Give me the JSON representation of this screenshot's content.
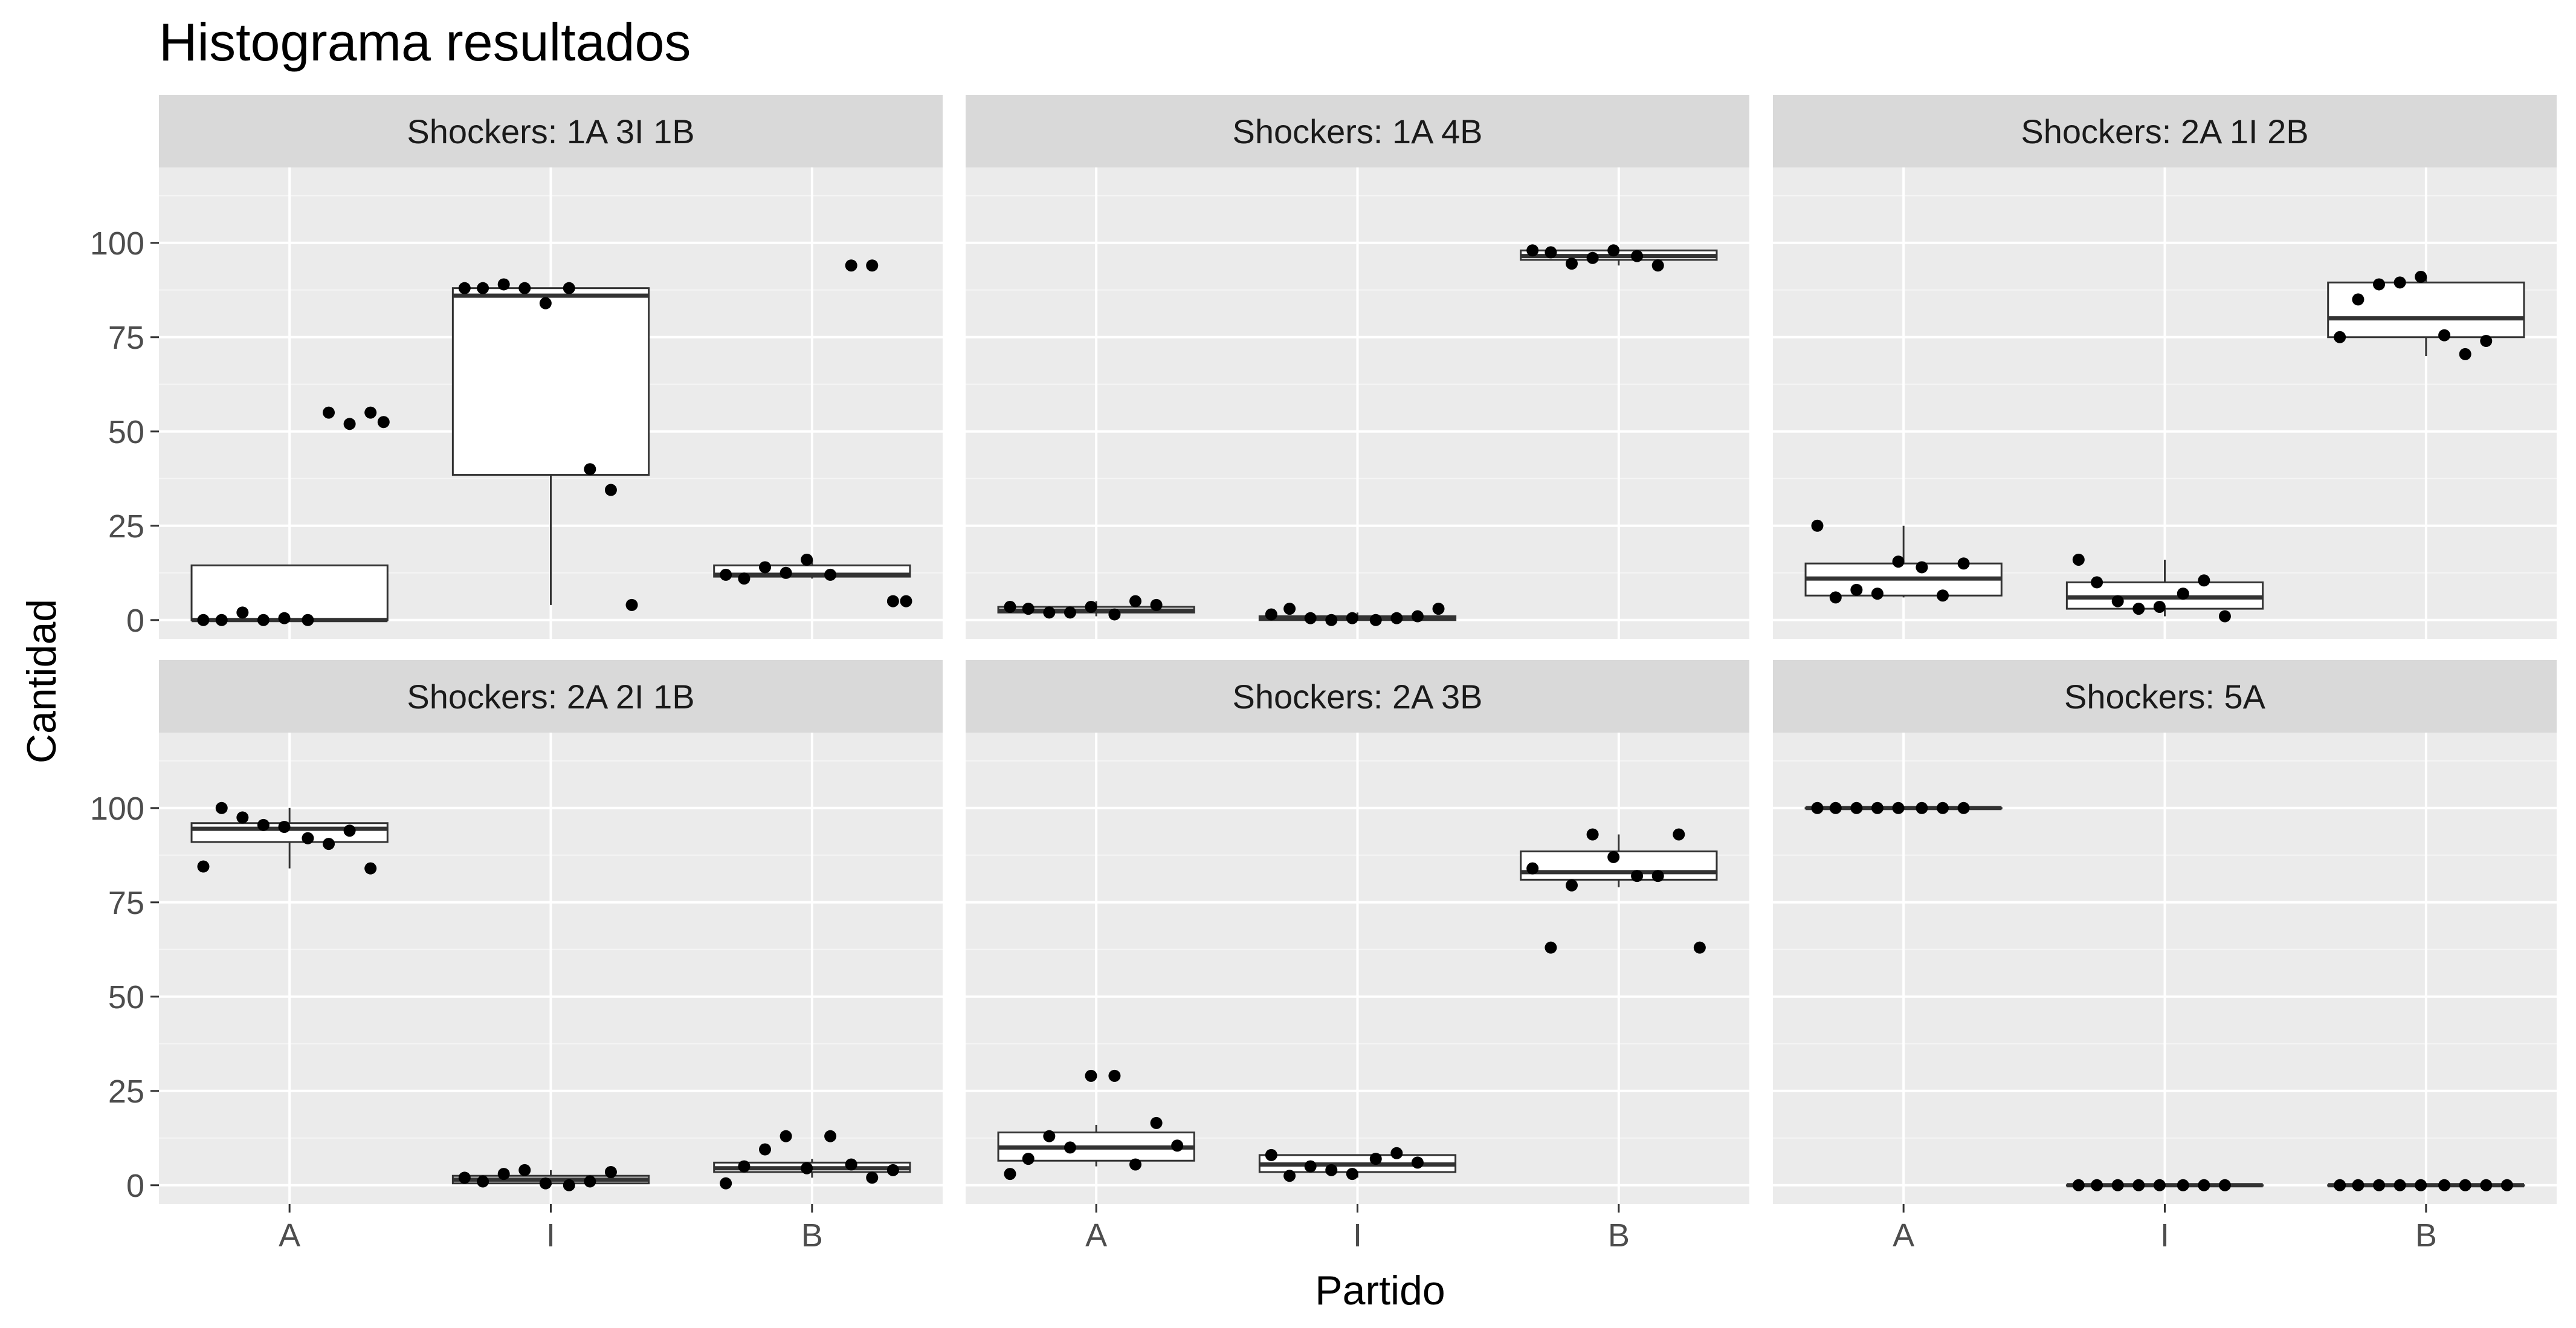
{
  "chart_data": {
    "type": "box",
    "title": "Histograma resultados",
    "xlabel": "Partido",
    "ylabel": "Cantidad",
    "x_categories": [
      "A",
      "I",
      "B"
    ],
    "y_ticks": [
      0,
      25,
      50,
      75,
      100
    ],
    "ylim": [
      -5,
      120
    ],
    "grid": true,
    "facets": [
      {
        "label": "Shockers: 1A 3I 1B",
        "groups": [
          {
            "category": "A",
            "box": {
              "q1": 0,
              "median": 0,
              "q3": 14.5,
              "lower": 0,
              "upper": 14.5
            },
            "points": [
              0,
              0,
              2,
              0,
              0.5,
              0,
              55,
              52,
              55,
              52.5
            ]
          },
          {
            "category": "I",
            "box": {
              "q1": 38.5,
              "median": 86,
              "q3": 88,
              "lower": 4,
              "upper": 88
            },
            "points": [
              88,
              88,
              89,
              88,
              84,
              88,
              40,
              34.5,
              4
            ]
          },
          {
            "category": "B",
            "box": {
              "q1": 11.5,
              "median": 12,
              "q3": 14.5,
              "lower": 11,
              "upper": 16
            },
            "points": [
              12,
              11,
              14,
              12.5,
              16,
              12,
              94,
              94,
              5,
              5
            ]
          }
        ]
      },
      {
        "label": "Shockers: 1A 4B",
        "groups": [
          {
            "category": "A",
            "box": {
              "q1": 2,
              "median": 2.5,
              "q3": 3.5,
              "lower": 1,
              "upper": 5
            },
            "points": [
              3.5,
              3,
              2,
              2,
              3.5,
              1.5,
              5,
              4
            ]
          },
          {
            "category": "I",
            "box": {
              "q1": 0,
              "median": 0.5,
              "q3": 1,
              "lower": 0,
              "upper": 2
            },
            "points": [
              1.5,
              3,
              0.5,
              0,
              0.5,
              0,
              0.5,
              1,
              3
            ]
          },
          {
            "category": "B",
            "box": {
              "q1": 95.5,
              "median": 96.5,
              "q3": 98,
              "lower": 94,
              "upper": 98
            },
            "points": [
              98,
              97.5,
              94.5,
              96,
              98,
              96.5,
              94
            ]
          }
        ]
      },
      {
        "label": "Shockers: 2A 1I 2B",
        "groups": [
          {
            "category": "A",
            "box": {
              "q1": 6.5,
              "median": 11,
              "q3": 15,
              "lower": 6,
              "upper": 25
            },
            "points": [
              25,
              6,
              8,
              7,
              15.5,
              14,
              6.5,
              15
            ]
          },
          {
            "category": "I",
            "box": {
              "q1": 3,
              "median": 6,
              "q3": 10,
              "lower": 1,
              "upper": 16
            },
            "points": [
              16,
              10,
              5,
              3,
              3.5,
              7,
              10.5,
              1
            ]
          },
          {
            "category": "B",
            "box": {
              "q1": 75,
              "median": 80,
              "q3": 89.5,
              "lower": 70,
              "upper": 91
            },
            "points": [
              75,
              85,
              89,
              89.5,
              91,
              75.5,
              70.5,
              74
            ]
          }
        ]
      },
      {
        "label": "Shockers: 2A 2I 1B",
        "groups": [
          {
            "category": "A",
            "box": {
              "q1": 91,
              "median": 94.5,
              "q3": 96,
              "lower": 84,
              "upper": 100
            },
            "points": [
              84.5,
              100,
              97.5,
              95.5,
              95,
              92,
              90.5,
              94,
              84
            ]
          },
          {
            "category": "I",
            "box": {
              "q1": 0.5,
              "median": 1.5,
              "q3": 2.5,
              "lower": 0,
              "upper": 4
            },
            "points": [
              2,
              1,
              3,
              4,
              0.5,
              0,
              1,
              3.5
            ]
          },
          {
            "category": "B",
            "box": {
              "q1": 3.5,
              "median": 4.5,
              "q3": 6,
              "lower": 2,
              "upper": 7
            },
            "points": [
              0.5,
              5,
              9.5,
              13,
              4.5,
              13,
              5.5,
              2,
              4
            ]
          }
        ]
      },
      {
        "label": "Shockers: 2A 3B",
        "groups": [
          {
            "category": "A",
            "box": {
              "q1": 6.5,
              "median": 10,
              "q3": 14,
              "lower": 5,
              "upper": 16
            },
            "points": [
              3,
              7,
              13,
              10,
              29,
              29,
              5.5,
              16.5,
              10.5
            ]
          },
          {
            "category": "I",
            "box": {
              "q1": 3.5,
              "median": 5.5,
              "q3": 8,
              "lower": 2,
              "upper": 8
            },
            "points": [
              8,
              2.5,
              5,
              4,
              3,
              7,
              8.5,
              6
            ]
          },
          {
            "category": "B",
            "box": {
              "q1": 81,
              "median": 83,
              "q3": 88.5,
              "lower": 79,
              "upper": 93
            },
            "points": [
              84,
              63,
              79.5,
              93,
              87,
              82,
              82,
              93,
              63
            ]
          }
        ]
      },
      {
        "label": "Shockers: 5A",
        "groups": [
          {
            "category": "A",
            "box": {
              "q1": 100,
              "median": 100,
              "q3": 100,
              "lower": 100,
              "upper": 100
            },
            "points": [
              100,
              100,
              100,
              100,
              100,
              100,
              100,
              100
            ]
          },
          {
            "category": "I",
            "box": {
              "q1": 0,
              "median": 0,
              "q3": 0,
              "lower": 0,
              "upper": 0
            },
            "points": [
              0,
              0,
              0,
              0,
              0,
              0,
              0,
              0
            ]
          },
          {
            "category": "B",
            "box": {
              "q1": 0,
              "median": 0,
              "q3": 0,
              "lower": 0,
              "upper": 0
            },
            "points": [
              0,
              0,
              0,
              0,
              0,
              0,
              0,
              0,
              0
            ]
          }
        ]
      }
    ]
  }
}
